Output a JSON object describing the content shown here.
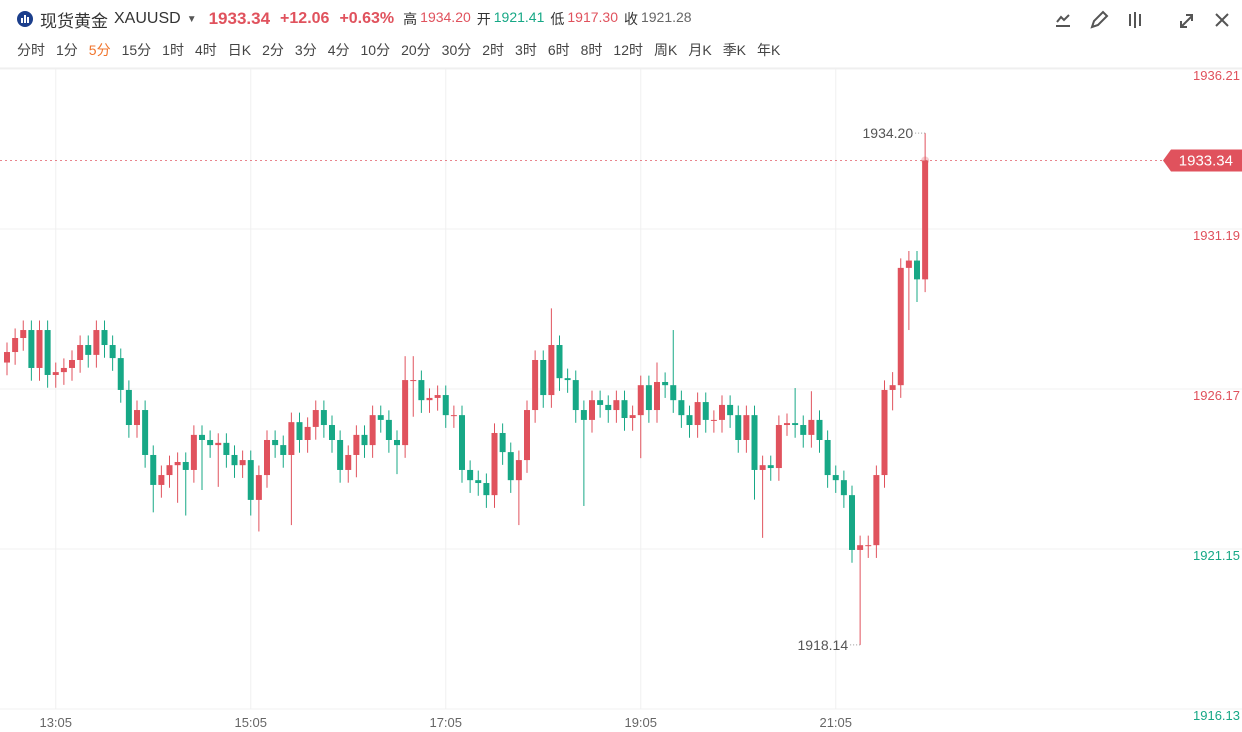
{
  "header": {
    "name": "现货黄金",
    "symbol": "XAUUSD",
    "price": "1933.34",
    "change": "+12.06",
    "change_pct": "+0.63%",
    "stats": [
      {
        "label": "高",
        "value": "1934.20"
      },
      {
        "label": "开",
        "value": "1921.41"
      },
      {
        "label": "低",
        "value": "1917.30"
      },
      {
        "label": "收",
        "value": "1921.28"
      }
    ]
  },
  "periods": [
    "分时",
    "1分",
    "5分",
    "15分",
    "1时",
    "4时",
    "日K",
    "2分",
    "3分",
    "4分",
    "10分",
    "20分",
    "30分",
    "2时",
    "3时",
    "6时",
    "8时",
    "12时",
    "周K",
    "月K",
    "季K",
    "年K"
  ],
  "active_period": 2,
  "chart_data": {
    "type": "candlestick",
    "categories": [
      null,
      null,
      null,
      null,
      null,
      null,
      "13:05",
      null,
      null,
      null,
      null,
      null,
      null,
      null,
      null,
      null,
      null,
      null,
      null,
      null,
      null,
      null,
      null,
      null,
      null,
      null,
      null,
      null,
      null,
      null,
      "15:05",
      null,
      null,
      null,
      null,
      null,
      null,
      null,
      null,
      null,
      null,
      null,
      null,
      null,
      null,
      null,
      null,
      null,
      null,
      null,
      null,
      null,
      null,
      null,
      "17:05",
      null,
      null,
      null,
      null,
      null,
      null,
      null,
      null,
      null,
      null,
      null,
      null,
      null,
      null,
      null,
      null,
      null,
      null,
      null,
      null,
      null,
      null,
      null,
      "19:05",
      null,
      null,
      null,
      null,
      null,
      null,
      null,
      null,
      null,
      null,
      null,
      null,
      null,
      null,
      null,
      null,
      null,
      null,
      null,
      null,
      null,
      null,
      null,
      "21:05",
      null,
      null,
      null,
      null,
      null,
      null,
      null,
      null,
      null,
      null,
      null
    ],
    "open": [
      1927.0,
      1927.33,
      1927.77,
      1928.02,
      1926.83,
      1928.02,
      1926.61,
      1926.7,
      1926.83,
      1927.08,
      1927.55,
      1927.24,
      1928.02,
      1927.55,
      1927.14,
      1926.14,
      1925.04,
      1925.51,
      1924.1,
      1923.16,
      1923.47,
      1923.78,
      1923.88,
      1923.63,
      1924.73,
      1924.57,
      1924.41,
      1924.48,
      1924.1,
      1923.78,
      1923.94,
      1922.69,
      1923.47,
      1924.57,
      1924.41,
      1924.1,
      1925.13,
      1924.57,
      1924.98,
      1925.51,
      1925.04,
      1924.57,
      1923.63,
      1924.1,
      1924.73,
      1924.41,
      1925.35,
      1925.2,
      1924.57,
      1924.41,
      1926.45,
      1926.45,
      1925.82,
      1925.89,
      1925.98,
      1925.35,
      1925.35,
      1923.63,
      1923.31,
      1923.22,
      1922.84,
      1924.79,
      1924.19,
      1923.31,
      1923.94,
      1925.51,
      1927.08,
      1925.98,
      1927.55,
      1926.51,
      1926.45,
      1925.51,
      1925.2,
      1925.82,
      1925.67,
      1925.51,
      1925.82,
      1925.26,
      1925.35,
      1926.29,
      1925.51,
      1926.39,
      1926.29,
      1925.82,
      1925.35,
      1925.04,
      1925.76,
      1925.2,
      1925.2,
      1925.67,
      1925.35,
      1924.57,
      1925.35,
      1923.63,
      1923.78,
      1923.69,
      1925.04,
      1925.1,
      1925.04,
      1924.73,
      1925.2,
      1924.57,
      1923.47,
      1923.31,
      1922.84,
      1921.12,
      1921.27,
      1921.27,
      1923.47,
      1926.14,
      1926.29,
      1929.97,
      1930.2,
      1929.61
    ],
    "high": [
      1927.63,
      1928.07,
      1928.32,
      1928.32,
      1928.32,
      1928.32,
      1927.0,
      1927.13,
      1927.38,
      1927.85,
      1927.85,
      1928.32,
      1928.32,
      1927.85,
      1927.44,
      1926.44,
      1925.81,
      1925.81,
      1924.4,
      1923.77,
      1924.08,
      1924.18,
      1924.18,
      1925.03,
      1925.03,
      1924.87,
      1924.78,
      1924.78,
      1924.4,
      1924.24,
      1924.24,
      1923.77,
      1924.87,
      1924.87,
      1924.71,
      1925.43,
      1925.43,
      1925.28,
      1925.81,
      1925.81,
      1925.34,
      1924.87,
      1924.4,
      1925.03,
      1925.03,
      1925.65,
      1925.65,
      1925.5,
      1924.87,
      1927.2,
      1927.2,
      1926.75,
      1926.19,
      1926.28,
      1926.28,
      1925.65,
      1925.65,
      1923.93,
      1923.61,
      1923.52,
      1925.09,
      1925.09,
      1924.49,
      1924.24,
      1925.81,
      1927.38,
      1927.38,
      1928.7,
      1927.85,
      1926.81,
      1926.75,
      1925.81,
      1926.12,
      1926.12,
      1925.97,
      1926.12,
      1926.12,
      1925.65,
      1926.59,
      1926.59,
      1927.0,
      1926.69,
      1928.02,
      1926.12,
      1925.65,
      1926.06,
      1926.06,
      1925.5,
      1925.97,
      1925.97,
      1925.65,
      1925.65,
      1925.65,
      1924.08,
      1924.08,
      1925.34,
      1925.4,
      1926.2,
      1925.34,
      1926.1,
      1925.5,
      1924.87,
      1923.77,
      1923.61,
      1923.14,
      1921.57,
      1921.57,
      1923.77,
      1926.44,
      1926.7,
      1930.27,
      1930.5,
      1930.5,
      1934.2
    ],
    "low": [
      1926.6,
      1926.93,
      1927.37,
      1926.43,
      1926.43,
      1926.21,
      1926.21,
      1926.3,
      1926.43,
      1926.68,
      1926.84,
      1926.84,
      1927.15,
      1926.74,
      1925.74,
      1924.64,
      1924.64,
      1923.7,
      1922.3,
      1922.76,
      1923.07,
      1922.6,
      1922.2,
      1923.23,
      1923.0,
      1924.01,
      1923.1,
      1923.7,
      1923.38,
      1923.38,
      1922.2,
      1921.7,
      1923.07,
      1924.01,
      1923.7,
      1921.9,
      1924.17,
      1924.17,
      1924.58,
      1924.64,
      1924.17,
      1923.23,
      1923.23,
      1923.4,
      1924.01,
      1924.01,
      1924.8,
      1924.17,
      1923.5,
      1924.01,
      1925.3,
      1925.42,
      1925.42,
      1925.49,
      1924.95,
      1924.95,
      1923.23,
      1922.91,
      1922.82,
      1922.44,
      1922.44,
      1923.79,
      1922.91,
      1921.9,
      1923.54,
      1925.11,
      1925.58,
      1925.58,
      1926.11,
      1926.05,
      1925.11,
      1922.5,
      1924.8,
      1925.27,
      1925.11,
      1925.11,
      1924.86,
      1924.86,
      1924.0,
      1925.11,
      1925.11,
      1925.89,
      1925.42,
      1924.95,
      1924.64,
      1924.64,
      1924.8,
      1924.8,
      1924.8,
      1924.95,
      1924.17,
      1924.17,
      1922.7,
      1921.5,
      1923.29,
      1923.29,
      1924.7,
      1924.64,
      1924.33,
      1924.33,
      1924.17,
      1923.07,
      1922.91,
      1922.44,
      1920.72,
      1918.14,
      1920.87,
      1920.87,
      1923.07,
      1925.5,
      1925.89,
      1928.02,
      1928.9,
      1929.21
    ],
    "close": [
      1927.33,
      1927.77,
      1928.02,
      1926.83,
      1928.02,
      1926.61,
      1926.7,
      1926.83,
      1927.08,
      1927.55,
      1927.24,
      1928.02,
      1927.55,
      1927.14,
      1926.14,
      1925.04,
      1925.51,
      1924.1,
      1923.16,
      1923.47,
      1923.78,
      1923.88,
      1923.63,
      1924.73,
      1924.57,
      1924.41,
      1924.48,
      1924.1,
      1923.78,
      1923.94,
      1922.69,
      1923.47,
      1924.57,
      1924.41,
      1924.1,
      1925.13,
      1924.57,
      1924.98,
      1925.51,
      1925.04,
      1924.57,
      1923.63,
      1924.1,
      1924.73,
      1924.41,
      1925.35,
      1925.2,
      1924.57,
      1924.41,
      1926.45,
      1926.45,
      1925.82,
      1925.89,
      1925.98,
      1925.35,
      1925.35,
      1923.63,
      1923.31,
      1923.22,
      1922.84,
      1924.79,
      1924.19,
      1923.31,
      1923.94,
      1925.51,
      1927.08,
      1925.98,
      1927.55,
      1926.51,
      1926.45,
      1925.51,
      1925.2,
      1925.82,
      1925.67,
      1925.51,
      1925.82,
      1925.26,
      1925.35,
      1926.29,
      1925.51,
      1926.39,
      1926.29,
      1925.82,
      1925.35,
      1925.04,
      1925.76,
      1925.2,
      1925.2,
      1925.67,
      1925.35,
      1924.57,
      1925.35,
      1923.63,
      1923.78,
      1923.69,
      1925.04,
      1925.1,
      1925.04,
      1924.73,
      1925.2,
      1924.57,
      1923.47,
      1923.31,
      1922.84,
      1921.12,
      1921.27,
      1921.27,
      1923.47,
      1926.14,
      1926.29,
      1929.97,
      1930.2,
      1929.61,
      1933.34
    ],
    "up_color": "#e0525d",
    "down_color": "#17a886",
    "ylim": [
      1916.13,
      1936.21
    ],
    "yticks": [
      1936.21,
      1931.19,
      1926.17,
      1921.15,
      1916.13
    ],
    "grid": true,
    "annotations": [
      {
        "value": 1934.2,
        "label": "1934.20"
      },
      {
        "value": 1918.14,
        "label": "1918.14"
      }
    ],
    "last_price": {
      "value": 1933.34,
      "label": "1933.34"
    }
  }
}
